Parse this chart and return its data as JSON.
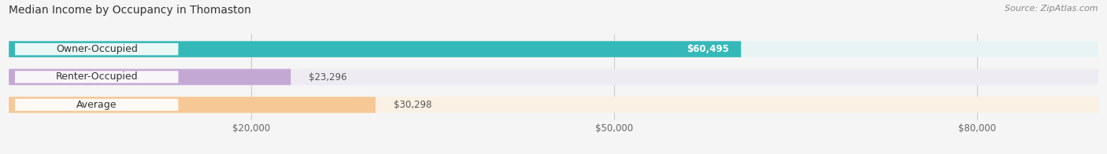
{
  "title": "Median Income by Occupancy in Thomaston",
  "source": "Source: ZipAtlas.com",
  "categories": [
    "Owner-Occupied",
    "Renter-Occupied",
    "Average"
  ],
  "values": [
    60495,
    23296,
    30298
  ],
  "bar_colors": [
    "#35b8b8",
    "#c4a8d4",
    "#f5c896"
  ],
  "bar_bg_colors": [
    "#e8f4f4",
    "#eeebf3",
    "#faf0e3"
  ],
  "value_labels": [
    "$60,495",
    "$23,296",
    "$30,298"
  ],
  "value_label_colors": [
    "#ffffff",
    "#555555",
    "#555555"
  ],
  "value_label_inside": [
    true,
    false,
    false
  ],
  "x_ticks": [
    20000,
    50000,
    80000
  ],
  "x_tick_labels": [
    "$20,000",
    "$50,000",
    "$80,000"
  ],
  "xlim": [
    0,
    90000
  ],
  "background_color": "#f5f5f5",
  "title_fontsize": 10,
  "source_fontsize": 8,
  "bar_label_fontsize": 8.5,
  "category_fontsize": 9,
  "bar_height": 0.58,
  "bar_gap": 0.18
}
